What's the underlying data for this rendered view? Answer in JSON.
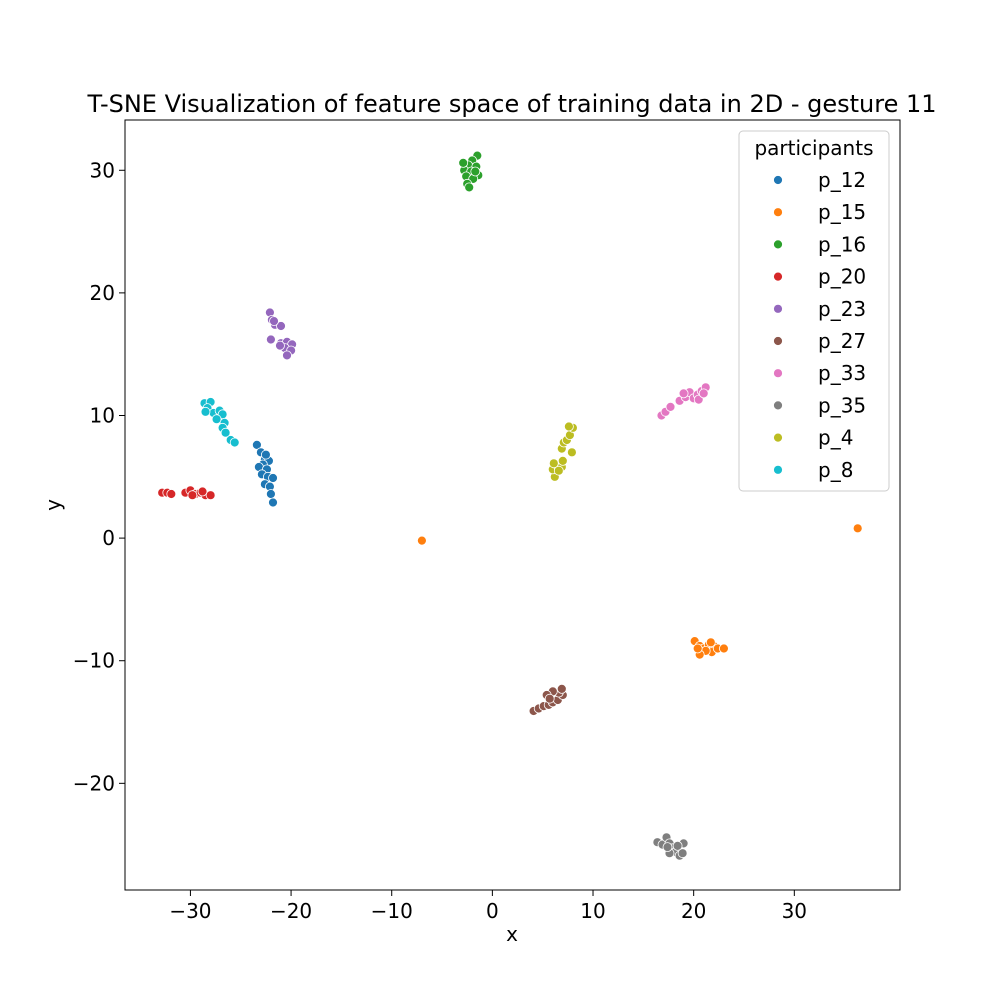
{
  "chart_data": {
    "type": "scatter",
    "title": "T-SNE Visualization of feature space of training data in 2D - gesture 11",
    "xlabel": "x",
    "ylabel": "y",
    "xlim": [
      -36.5,
      40.5
    ],
    "ylim": [
      -28.7,
      34.1
    ],
    "xticks": [
      -30,
      -20,
      -10,
      0,
      10,
      20,
      30
    ],
    "yticks": [
      -20,
      -10,
      0,
      10,
      20,
      30
    ],
    "xtick_labels": [
      "−30",
      "−20",
      "−10",
      "0",
      "10",
      "20",
      "30"
    ],
    "ytick_labels": [
      "−20",
      "−10",
      "0",
      "10",
      "20",
      "30"
    ],
    "grid": false,
    "legend": {
      "title": "participants",
      "position": "top-right"
    },
    "series": [
      {
        "name": "p_12",
        "color": "#1f77b4",
        "points": [
          [
            -23.4,
            7.6
          ],
          [
            -23.0,
            7.0
          ],
          [
            -22.6,
            6.4
          ],
          [
            -22.2,
            6.3
          ],
          [
            -22.8,
            6.0
          ],
          [
            -23.2,
            5.8
          ],
          [
            -22.4,
            5.6
          ],
          [
            -22.9,
            5.2
          ],
          [
            -22.3,
            5.0
          ],
          [
            -21.8,
            4.9
          ],
          [
            -22.6,
            4.4
          ],
          [
            -22.1,
            4.2
          ],
          [
            -22.0,
            3.6
          ],
          [
            -21.8,
            2.9
          ],
          [
            -22.5,
            6.8
          ]
        ]
      },
      {
        "name": "p_15",
        "color": "#ff7f0e",
        "points": [
          [
            -7.0,
            -0.2
          ],
          [
            36.3,
            0.8
          ],
          [
            20.1,
            -8.4
          ],
          [
            20.6,
            -8.8
          ],
          [
            21.0,
            -9.0
          ],
          [
            21.5,
            -8.7
          ],
          [
            22.0,
            -8.8
          ],
          [
            21.8,
            -9.3
          ],
          [
            21.2,
            -9.2
          ],
          [
            20.6,
            -9.5
          ],
          [
            22.4,
            -9.0
          ],
          [
            23.0,
            -9.0
          ],
          [
            20.4,
            -9.0
          ],
          [
            21.7,
            -8.5
          ]
        ]
      },
      {
        "name": "p_16",
        "color": "#2ca02c",
        "points": [
          [
            -1.5,
            31.2
          ],
          [
            -2.0,
            30.8
          ],
          [
            -2.4,
            30.4
          ],
          [
            -1.6,
            30.3
          ],
          [
            -2.8,
            30.0
          ],
          [
            -2.1,
            29.9
          ],
          [
            -1.4,
            29.6
          ],
          [
            -2.6,
            29.5
          ],
          [
            -1.9,
            29.3
          ],
          [
            -2.5,
            28.9
          ],
          [
            -2.3,
            28.6
          ],
          [
            -2.9,
            30.6
          ],
          [
            -1.7,
            29.9
          ]
        ]
      },
      {
        "name": "p_20",
        "color": "#d62728",
        "points": [
          [
            -32.8,
            3.7
          ],
          [
            -32.3,
            3.7
          ],
          [
            -31.9,
            3.6
          ],
          [
            -30.5,
            3.7
          ],
          [
            -30.0,
            3.9
          ],
          [
            -29.5,
            3.6
          ],
          [
            -29.0,
            3.7
          ],
          [
            -28.5,
            3.5
          ],
          [
            -28.0,
            3.5
          ],
          [
            -29.8,
            3.5
          ],
          [
            -28.8,
            3.8
          ]
        ]
      },
      {
        "name": "p_23",
        "color": "#9467bd",
        "points": [
          [
            -22.1,
            18.4
          ],
          [
            -21.9,
            17.8
          ],
          [
            -21.6,
            17.4
          ],
          [
            -21.0,
            17.3
          ],
          [
            -22.0,
            16.2
          ],
          [
            -21.0,
            15.9
          ],
          [
            -20.4,
            16.0
          ],
          [
            -19.9,
            15.8
          ],
          [
            -20.6,
            15.5
          ],
          [
            -20.0,
            15.3
          ],
          [
            -20.4,
            14.9
          ],
          [
            -21.1,
            15.7
          ],
          [
            -21.7,
            17.7
          ]
        ]
      },
      {
        "name": "p_27",
        "color": "#8c564b",
        "points": [
          [
            4.1,
            -14.1
          ],
          [
            4.6,
            -13.9
          ],
          [
            5.1,
            -13.7
          ],
          [
            5.6,
            -13.6
          ],
          [
            6.0,
            -13.4
          ],
          [
            6.5,
            -13.2
          ],
          [
            7.0,
            -12.8
          ],
          [
            6.6,
            -12.6
          ],
          [
            6.0,
            -12.5
          ],
          [
            5.4,
            -12.8
          ],
          [
            6.9,
            -12.3
          ],
          [
            5.7,
            -13.1
          ]
        ]
      },
      {
        "name": "p_33",
        "color": "#e377c2",
        "points": [
          [
            16.8,
            10.0
          ],
          [
            17.2,
            10.3
          ],
          [
            17.7,
            10.7
          ],
          [
            18.6,
            11.2
          ],
          [
            19.2,
            11.5
          ],
          [
            19.6,
            11.9
          ],
          [
            20.0,
            11.4
          ],
          [
            20.4,
            11.7
          ],
          [
            20.8,
            12.0
          ],
          [
            21.2,
            12.3
          ],
          [
            20.5,
            11.3
          ],
          [
            21.0,
            11.8
          ],
          [
            19.0,
            11.8
          ]
        ]
      },
      {
        "name": "p_35",
        "color": "#7f7f7f",
        "points": [
          [
            16.4,
            -24.8
          ],
          [
            16.9,
            -25.0
          ],
          [
            17.3,
            -24.4
          ],
          [
            17.6,
            -24.9
          ],
          [
            17.9,
            -25.3
          ],
          [
            18.2,
            -25.6
          ],
          [
            18.6,
            -25.9
          ],
          [
            19.0,
            -24.9
          ],
          [
            17.6,
            -25.7
          ],
          [
            18.9,
            -25.7
          ],
          [
            17.4,
            -25.2
          ],
          [
            18.4,
            -25.1
          ]
        ]
      },
      {
        "name": "p_4",
        "color": "#bcbd22",
        "points": [
          [
            6.2,
            5.0
          ],
          [
            6.0,
            5.6
          ],
          [
            6.4,
            6.0
          ],
          [
            6.9,
            5.8
          ],
          [
            6.6,
            5.5
          ],
          [
            7.0,
            6.3
          ],
          [
            6.9,
            7.3
          ],
          [
            7.1,
            7.8
          ],
          [
            7.4,
            8.0
          ],
          [
            7.7,
            8.4
          ],
          [
            8.0,
            9.0
          ],
          [
            7.6,
            9.1
          ],
          [
            7.9,
            7.0
          ],
          [
            6.1,
            6.1
          ]
        ]
      },
      {
        "name": "p_8",
        "color": "#17becf",
        "points": [
          [
            -28.6,
            11.0
          ],
          [
            -28.0,
            11.1
          ],
          [
            -28.3,
            10.6
          ],
          [
            -27.7,
            10.2
          ],
          [
            -27.1,
            10.4
          ],
          [
            -26.8,
            10.1
          ],
          [
            -27.4,
            9.7
          ],
          [
            -26.6,
            9.4
          ],
          [
            -26.8,
            9.0
          ],
          [
            -26.5,
            8.6
          ],
          [
            -26.0,
            8.0
          ],
          [
            -25.6,
            7.8
          ],
          [
            -28.5,
            10.3
          ]
        ]
      }
    ]
  }
}
